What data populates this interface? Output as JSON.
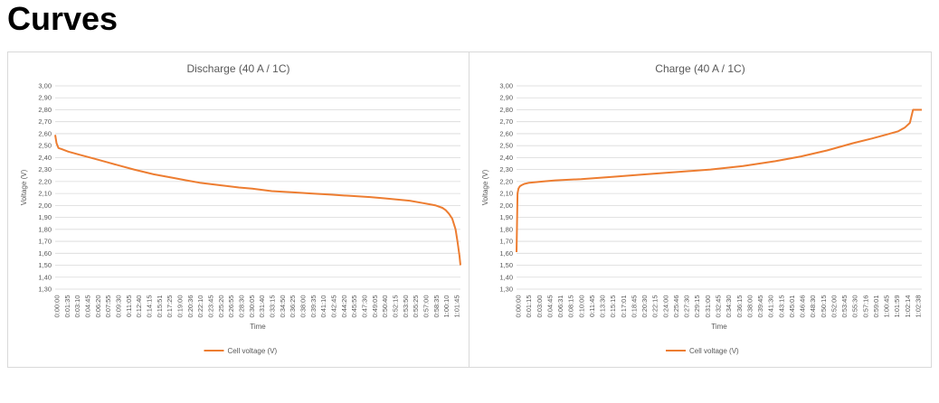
{
  "page": {
    "title": "Curves"
  },
  "colors": {
    "series": "#ed7d31",
    "grid": "#d9d9d9",
    "text": "#595959"
  },
  "chart_data": [
    {
      "type": "line",
      "title": "Discharge (40 A / 1C)",
      "xlabel": "Time",
      "ylabel": "Voltage (V)",
      "ylim": [
        1.3,
        3.0
      ],
      "yticks": [
        "3,00",
        "2,90",
        "2,80",
        "2,70",
        "2,60",
        "2,50",
        "2,40",
        "2,30",
        "2,20",
        "2,10",
        "2,00",
        "1,90",
        "1,80",
        "1,70",
        "1,60",
        "1,50",
        "1,40",
        "1,30"
      ],
      "x_tick_labels": [
        "0:00:00",
        "0:01:35",
        "0:03:10",
        "0:04:45",
        "0:06:20",
        "0:07:55",
        "0:09:30",
        "0:11:05",
        "0:12:40",
        "0:14:15",
        "0:15:51",
        "0:17:25",
        "0:19:00",
        "0:20:36",
        "0:22:10",
        "0:23:45",
        "0:25:20",
        "0:26:55",
        "0:28:30",
        "0:30:05",
        "0:31:40",
        "0:33:15",
        "0:34:50",
        "0:36:25",
        "0:38:00",
        "0:39:35",
        "0:41:10",
        "0:42:45",
        "0:44:20",
        "0:45:55",
        "0:47:30",
        "0:49:05",
        "0:50:40",
        "0:52:15",
        "0:53:50",
        "0:55:25",
        "0:57:00",
        "0:58:35",
        "1:00:10",
        "1:01:45"
      ],
      "legend_position": "bottom",
      "grid": true,
      "series": [
        {
          "name": "Cell voltage (V)",
          "x_minutes": [
            0,
            0.2,
            0.5,
            1,
            2,
            4,
            6,
            8,
            10,
            12,
            15,
            18,
            20,
            22,
            25,
            28,
            30,
            33,
            36,
            39,
            42,
            45,
            48,
            50,
            52,
            54,
            56,
            57,
            58,
            59,
            59.5,
            60,
            60.5,
            61,
            61.3,
            61.6,
            61.75
          ],
          "values": [
            2.59,
            2.52,
            2.48,
            2.47,
            2.45,
            2.42,
            2.39,
            2.36,
            2.33,
            2.3,
            2.26,
            2.23,
            2.21,
            2.19,
            2.17,
            2.15,
            2.14,
            2.12,
            2.11,
            2.1,
            2.09,
            2.08,
            2.07,
            2.06,
            2.05,
            2.04,
            2.02,
            2.01,
            2.0,
            1.98,
            1.96,
            1.93,
            1.89,
            1.8,
            1.7,
            1.58,
            1.5
          ]
        }
      ]
    },
    {
      "type": "line",
      "title": "Charge (40 A / 1C)",
      "xlabel": "Time",
      "ylabel": "Voltage (V)",
      "ylim": [
        1.3,
        3.0
      ],
      "yticks": [
        "3,00",
        "2,90",
        "2,80",
        "2,70",
        "2,60",
        "2,50",
        "2,40",
        "2,30",
        "2,20",
        "2,10",
        "2,00",
        "1,90",
        "1,80",
        "1,70",
        "1,60",
        "1,50",
        "1,40",
        "1,30"
      ],
      "x_tick_labels": [
        "0:00:00",
        "0:01:15",
        "0:03:00",
        "0:04:45",
        "0:06:31",
        "0:08:15",
        "0:10:00",
        "0:11:45",
        "0:13:30",
        "0:15:15",
        "0:17:01",
        "0:18:45",
        "0:20:30",
        "0:22:15",
        "0:24:00",
        "0:25:46",
        "0:27:30",
        "0:29:15",
        "0:31:00",
        "0:32:45",
        "0:34:30",
        "0:36:15",
        "0:38:00",
        "0:39:45",
        "0:41:30",
        "0:43:15",
        "0:45:01",
        "0:46:46",
        "0:48:30",
        "0:50:15",
        "0:52:00",
        "0:53:45",
        "0:55:30",
        "0:57:16",
        "0:59:01",
        "1:00:45",
        "1:01:59",
        "1:02:14",
        "1:02:38"
      ],
      "legend_position": "bottom",
      "grid": true,
      "series": [
        {
          "name": "Cell voltage (V)",
          "x_minutes": [
            0,
            0.15,
            0.3,
            0.5,
            0.8,
            1.2,
            2,
            4,
            6,
            10,
            15,
            20,
            25,
            30,
            35,
            40,
            44,
            48,
            52,
            55,
            57,
            59,
            60,
            60.8,
            61.3,
            61.6,
            61.9,
            62.2,
            62.65
          ],
          "values": [
            1.61,
            2.1,
            2.14,
            2.16,
            2.17,
            2.18,
            2.19,
            2.2,
            2.21,
            2.22,
            2.24,
            2.26,
            2.28,
            2.3,
            2.33,
            2.37,
            2.41,
            2.46,
            2.52,
            2.56,
            2.59,
            2.62,
            2.65,
            2.69,
            2.8,
            2.8,
            2.8,
            2.8,
            2.8
          ]
        }
      ]
    }
  ]
}
